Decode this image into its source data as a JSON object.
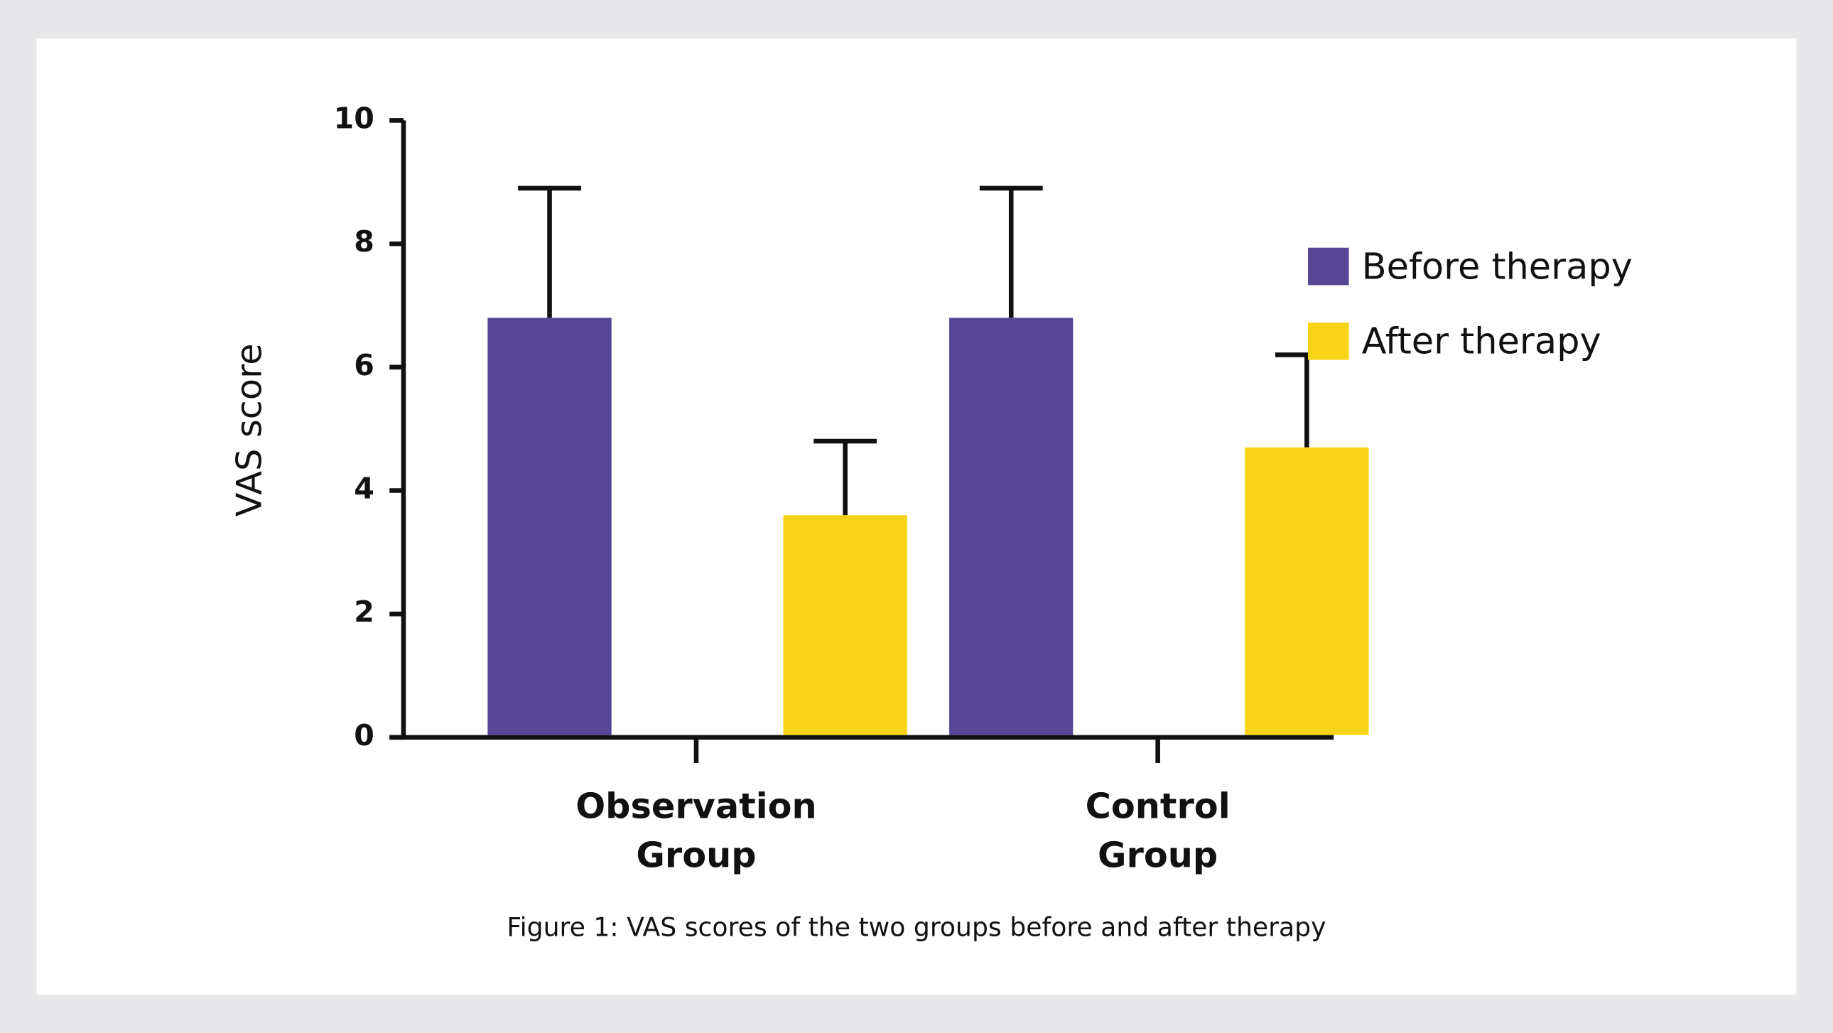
{
  "chart_data": {
    "type": "bar",
    "ylabel": "VAS score",
    "caption": "Figure 1: VAS scores of the two groups before and after therapy",
    "categories": [
      "Observation Group",
      "Control Group"
    ],
    "series": [
      {
        "name": "Before therapy",
        "color": "#574596",
        "values": [
          6.8,
          6.8
        ],
        "errors": [
          2.1,
          2.1
        ]
      },
      {
        "name": "After therapy",
        "color": "#f7d417",
        "values": [
          3.6,
          4.7
        ],
        "errors": [
          1.2,
          1.5
        ]
      }
    ],
    "ylim": [
      0,
      10
    ],
    "yticks": [
      0,
      2,
      4,
      6,
      8,
      10
    ],
    "legend": "right"
  }
}
